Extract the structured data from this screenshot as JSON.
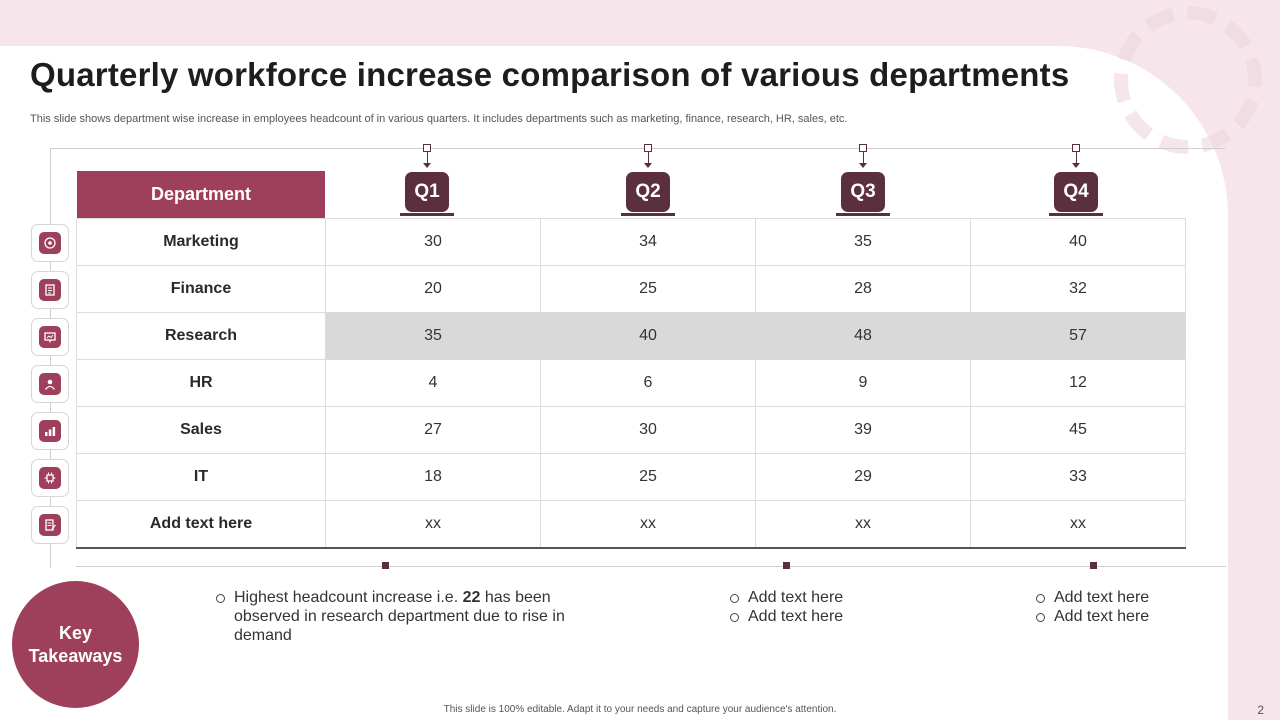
{
  "title": "Quarterly workforce increase comparison of various departments",
  "subtitle": "This slide shows department wise increase in employees headcount of in various quarters. It includes departments such as marketing, finance, research, HR, sales, etc.",
  "table": {
    "department_header": "Department",
    "quarters": [
      "Q1",
      "Q2",
      "Q3",
      "Q4"
    ],
    "rows": [
      {
        "department": "Marketing",
        "values": [
          "30",
          "34",
          "35",
          "40"
        ],
        "icon": "marketing-icon"
      },
      {
        "department": "Finance",
        "values": [
          "20",
          "25",
          "28",
          "32"
        ],
        "icon": "finance-icon"
      },
      {
        "department": "Research",
        "values": [
          "35",
          "40",
          "48",
          "57"
        ],
        "icon": "research-icon"
      },
      {
        "department": "HR",
        "values": [
          "4",
          "6",
          "9",
          "12"
        ],
        "icon": "hr-icon"
      },
      {
        "department": "Sales",
        "values": [
          "27",
          "30",
          "39",
          "45"
        ],
        "icon": "sales-icon"
      },
      {
        "department": "IT",
        "values": [
          "18",
          "25",
          "29",
          "33"
        ],
        "icon": "it-icon"
      },
      {
        "department": "Add text here",
        "values": [
          "xx",
          "xx",
          "xx",
          "xx"
        ],
        "icon": "notes-icon"
      }
    ],
    "highlight_row": "Research",
    "colors": {
      "accent": "#9e3f5c",
      "badge": "#5c2f3f",
      "highlight": "#d9d9d9"
    }
  },
  "takeaways": {
    "label": "Key Takeaways",
    "main": {
      "prefix": "Highest  headcount increase i.e. ",
      "value": "22",
      "suffix": " has been observed in research department due to rise in demand"
    },
    "col2": [
      "Add text here",
      "Add text here"
    ],
    "col3": [
      "Add text here",
      "Add text here"
    ]
  },
  "footer": "This slide is 100% editable. Adapt it to your needs and capture your audience's attention.",
  "page_number": "2"
}
